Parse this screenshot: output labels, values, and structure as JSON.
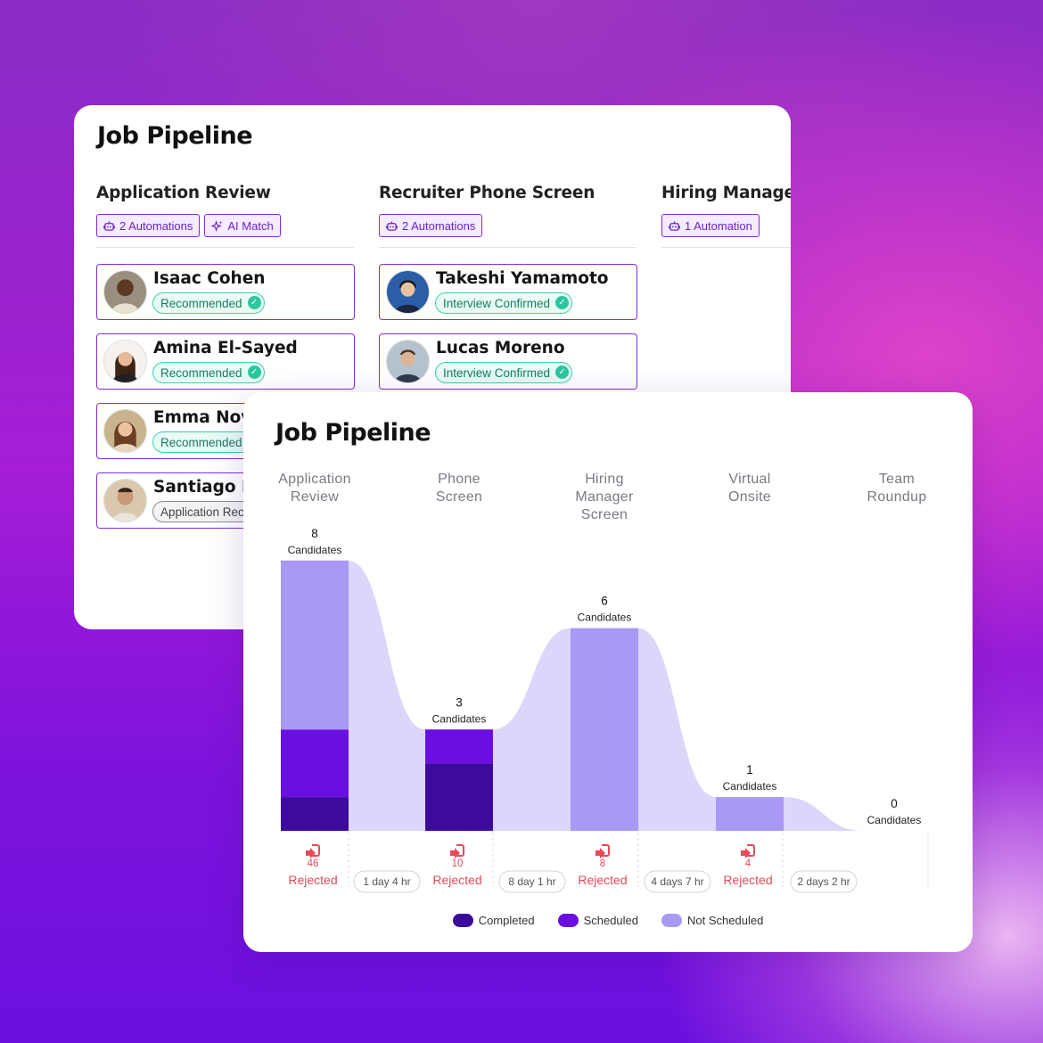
{
  "back_card": {
    "title": "Job Pipeline",
    "columns": [
      {
        "title": "Application Review",
        "tags": [
          {
            "label": "2 Automations",
            "icon": "robot-icon"
          },
          {
            "label": "AI Match",
            "icon": "sparkle-icon"
          }
        ],
        "candidates": [
          {
            "name": "Isaac Cohen",
            "status": "Recommended",
            "status_style": "green"
          },
          {
            "name": "Amina El-Sayed",
            "status": "Recommended",
            "status_style": "green"
          },
          {
            "name": "Emma Nov",
            "status": "Recommended",
            "status_style": "green"
          },
          {
            "name": "Santiago R",
            "status": "Application Rec",
            "status_style": "grey"
          }
        ]
      },
      {
        "title": "Recruiter Phone Screen",
        "tags": [
          {
            "label": "2 Automations",
            "icon": "robot-icon"
          }
        ],
        "candidates": [
          {
            "name": "Takeshi Yamamoto",
            "status": "Interview Confirmed",
            "status_style": "green"
          },
          {
            "name": "Lucas Moreno",
            "status": "Interview Confirmed",
            "status_style": "green"
          }
        ]
      },
      {
        "title": "Hiring Manager",
        "tags": [
          {
            "label": "1 Automation",
            "icon": "robot-icon"
          }
        ],
        "candidates": []
      }
    ]
  },
  "front_card": {
    "title": "Job Pipeline",
    "stages": [
      {
        "label_lines": [
          "Application",
          "Review"
        ]
      },
      {
        "label_lines": [
          "Phone",
          "Screen"
        ]
      },
      {
        "label_lines": [
          "Hiring",
          "Manager",
          "Screen"
        ]
      },
      {
        "label_lines": [
          "Virtual",
          "Onsite"
        ]
      },
      {
        "label_lines": [
          "Team",
          "Roundup"
        ]
      }
    ],
    "legend": [
      {
        "label": "Completed",
        "color": "#3d0a9e"
      },
      {
        "label": "Scheduled",
        "color": "#6a0fe0"
      },
      {
        "label": "Not Scheduled",
        "color": "#aa98f5"
      }
    ]
  },
  "chart_data": {
    "type": "bar",
    "categories": [
      "Application Review",
      "Phone Screen",
      "Hiring Manager Screen",
      "Virtual Onsite",
      "Team Roundup"
    ],
    "candidates": [
      8,
      3,
      6,
      1,
      0
    ],
    "candidates_unit": "Candidates",
    "series": [
      {
        "name": "Completed",
        "values": [
          1,
          2,
          0,
          0,
          0
        ],
        "color": "#3d0a9e"
      },
      {
        "name": "Scheduled",
        "values": [
          2,
          1,
          0,
          0,
          0
        ],
        "color": "#6a0fe0"
      },
      {
        "name": "Not Scheduled",
        "values": [
          5,
          0,
          6,
          1,
          0
        ],
        "color": "#aa98f5"
      }
    ],
    "rejected": [
      46,
      10,
      8,
      4
    ],
    "rejected_label": "Rejected",
    "durations": [
      "1 day 4 hr",
      "8 day 1 hr",
      "4 days 7 hr",
      "2 days 2 hr"
    ],
    "flow_color": "#ddd6fb",
    "rejected_color": "#e8495a"
  }
}
